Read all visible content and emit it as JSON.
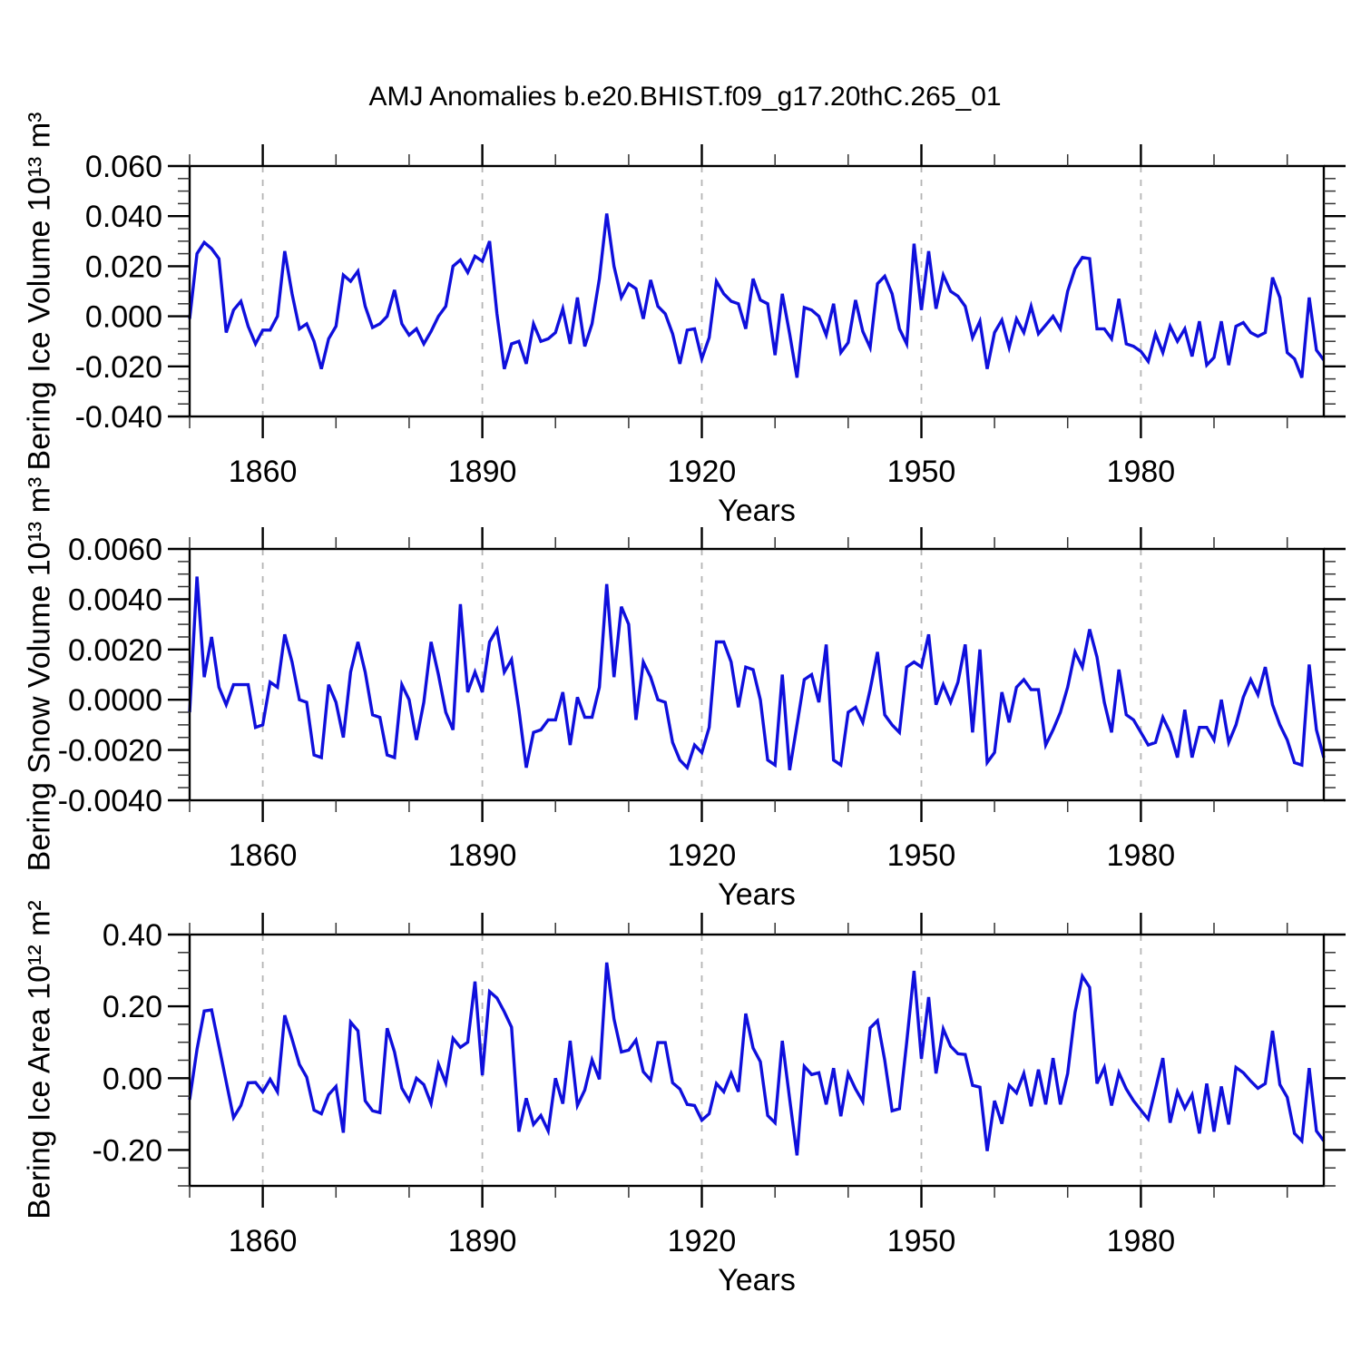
{
  "figure": {
    "title": "AMJ Anomalies b.e20.BHIST.f09_g17.20thC.265_01",
    "background_color": "#ffffff",
    "line_color": "#0f0fdc",
    "gridline_color": "#b4b4b4",
    "axis_color": "#000000",
    "minor_tick_color": "#333333"
  },
  "chart_data": [
    {
      "id": "ice_volume",
      "type": "line",
      "title": "AMJ Anomalies b.e20.BHIST.f09_g17.20thC.265_01",
      "xlabel": "Years",
      "ylabel": "Bering Ice Volume 10¹³ m³",
      "legend": "none",
      "grid": "vertical-dashed-at-major-xticks",
      "xlim": [
        1850,
        2005
      ],
      "ylim": [
        -0.04,
        0.06
      ],
      "x_start": 1850,
      "x_step": 1,
      "xticks": {
        "values": [
          1860,
          1890,
          1920,
          1950,
          1980
        ],
        "labels": [
          "1860",
          "1890",
          "1920",
          "1950",
          "1980"
        ],
        "minor_step": 10
      },
      "yticks": {
        "values": [
          -0.04,
          -0.02,
          0.0,
          0.02,
          0.04,
          0.06
        ],
        "labels": [
          "-0.040",
          "-0.020",
          "0.000",
          "0.020",
          "0.040",
          "0.060"
        ],
        "minor_step": 0.005
      },
      "values": [
        -0.001,
        0.025,
        0.0295,
        0.027,
        0.023,
        -0.0065,
        0.0025,
        0.006,
        -0.004,
        -0.011,
        -0.0055,
        -0.0055,
        0.0,
        0.026,
        0.009,
        -0.005,
        -0.003,
        -0.01,
        -0.021,
        -0.009,
        -0.004,
        0.0165,
        0.014,
        0.018,
        0.004,
        -0.0045,
        -0.003,
        0.0,
        0.0105,
        -0.003,
        -0.0075,
        -0.005,
        -0.011,
        -0.006,
        0.0,
        0.004,
        0.02,
        0.0225,
        0.0175,
        0.024,
        0.022,
        0.03,
        0.001,
        -0.021,
        -0.011,
        -0.01,
        -0.019,
        -0.003,
        -0.01,
        -0.009,
        -0.0065,
        0.003,
        -0.011,
        0.0075,
        -0.012,
        -0.003,
        0.015,
        0.041,
        0.02,
        0.0075,
        0.013,
        0.011,
        -0.001,
        0.0145,
        0.004,
        0.001,
        -0.007,
        -0.019,
        -0.0055,
        -0.005,
        -0.017,
        -0.0085,
        0.014,
        0.009,
        0.006,
        0.005,
        -0.005,
        0.015,
        0.0065,
        0.005,
        -0.0155,
        0.009,
        -0.007,
        -0.0245,
        0.0035,
        0.0025,
        0.0,
        -0.0075,
        0.005,
        -0.0145,
        -0.0105,
        0.0065,
        -0.006,
        -0.0125,
        0.013,
        0.016,
        0.009,
        -0.005,
        -0.011,
        0.029,
        0.0025,
        0.026,
        0.003,
        0.0165,
        0.01,
        0.008,
        0.004,
        -0.0085,
        -0.002,
        -0.021,
        -0.0065,
        -0.0015,
        -0.0125,
        -0.001,
        -0.0065,
        0.004,
        -0.007,
        -0.0035,
        0.0,
        -0.005,
        0.01,
        0.019,
        0.0235,
        0.023,
        -0.005,
        -0.005,
        -0.009,
        0.007,
        -0.011,
        -0.012,
        -0.014,
        -0.018,
        -0.007,
        -0.0145,
        -0.004,
        -0.01,
        -0.005,
        -0.016,
        -0.002,
        -0.0195,
        -0.0165,
        -0.002,
        -0.0195,
        -0.004,
        -0.0025,
        -0.0065,
        -0.008,
        -0.0065,
        0.0155,
        0.0075,
        -0.0145,
        -0.017,
        -0.0245,
        0.0075,
        -0.0135,
        -0.0175
      ]
    },
    {
      "id": "snow_volume",
      "type": "line",
      "title": "",
      "xlabel": "Years",
      "ylabel": "Bering Snow Volume 10¹³ m³",
      "legend": "none",
      "grid": "vertical-dashed-at-major-xticks",
      "xlim": [
        1850,
        2005
      ],
      "ylim": [
        -0.004,
        0.006
      ],
      "x_start": 1850,
      "x_step": 1,
      "xticks": {
        "values": [
          1860,
          1890,
          1920,
          1950,
          1980
        ],
        "labels": [
          "1860",
          "1890",
          "1920",
          "1950",
          "1980"
        ],
        "minor_step": 10
      },
      "yticks": {
        "values": [
          -0.004,
          -0.002,
          0.0,
          0.002,
          0.004,
          0.006
        ],
        "labels": [
          "-0.0040",
          "-0.0020",
          "0.0000",
          "0.0020",
          "0.0040",
          "0.0060"
        ],
        "minor_step": 0.0005
      },
      "values": [
        -0.0005,
        0.0049,
        0.0009,
        0.0025,
        0.0005,
        -0.0002,
        0.0006,
        0.0006,
        0.0006,
        -0.0011,
        -0.001,
        0.0007,
        0.0005,
        0.0026,
        0.0015,
        0.0,
        -0.0001,
        -0.0022,
        -0.0023,
        0.0006,
        -0.0001,
        -0.0015,
        0.0011,
        0.0023,
        0.0011,
        -0.0006,
        -0.0007,
        -0.0022,
        -0.0023,
        0.0006,
        0.0,
        -0.0016,
        -0.0001,
        0.0023,
        0.001,
        -0.0005,
        -0.0012,
        0.0038,
        0.0003,
        0.0011,
        0.0003,
        0.0023,
        0.0028,
        0.0011,
        0.0016,
        -0.0004,
        -0.0027,
        -0.0013,
        -0.0012,
        -0.0008,
        -0.0008,
        0.0003,
        -0.0018,
        0.0001,
        -0.0007,
        -0.0007,
        0.0005,
        0.0046,
        0.0009,
        0.0037,
        0.003,
        -0.0008,
        0.0015,
        0.0009,
        0.0,
        -0.0001,
        -0.0017,
        -0.0024,
        -0.0027,
        -0.0018,
        -0.0021,
        -0.0011,
        0.0023,
        0.0023,
        0.0015,
        -0.0003,
        0.0013,
        0.0012,
        0.0,
        -0.0024,
        -0.0026,
        0.001,
        -0.0028,
        -0.001,
        0.0008,
        0.001,
        -0.0001,
        0.0022,
        -0.0024,
        -0.0026,
        -0.0005,
        -0.0003,
        -0.0009,
        0.0004,
        0.0019,
        -0.0006,
        -0.001,
        -0.0013,
        0.0013,
        0.0015,
        0.0013,
        0.0026,
        -0.0002,
        0.0006,
        -0.0001,
        0.0007,
        0.0022,
        -0.0013,
        0.002,
        -0.0025,
        -0.0021,
        0.0003,
        -0.0009,
        0.0005,
        0.0008,
        0.0004,
        0.0004,
        -0.0018,
        -0.0012,
        -0.0005,
        0.0005,
        0.0019,
        0.0013,
        0.0028,
        0.0017,
        -0.0001,
        -0.0013,
        0.0012,
        -0.0006,
        -0.0008,
        -0.0013,
        -0.0018,
        -0.0017,
        -0.0007,
        -0.0013,
        -0.0023,
        -0.0004,
        -0.0023,
        -0.0011,
        -0.0011,
        -0.0016,
        0.0,
        -0.0017,
        -0.001,
        0.0001,
        0.0008,
        0.0002,
        0.0013,
        -0.0002,
        -0.001,
        -0.0016,
        -0.0025,
        -0.0026,
        0.0014,
        -0.0012,
        -0.0023
      ]
    },
    {
      "id": "ice_area",
      "type": "line",
      "title": "",
      "xlabel": "Years",
      "ylabel": "Bering Ice Area 10¹² m²",
      "legend": "none",
      "grid": "vertical-dashed-at-major-xticks",
      "xlim": [
        1850,
        2005
      ],
      "ylim": [
        -0.3,
        0.4
      ],
      "x_start": 1850,
      "x_step": 1,
      "xticks": {
        "values": [
          1860,
          1890,
          1920,
          1950,
          1980
        ],
        "labels": [
          "1860",
          "1890",
          "1920",
          "1950",
          "1980"
        ],
        "minor_step": 10
      },
      "yticks": {
        "values": [
          -0.2,
          0.0,
          0.2,
          0.4
        ],
        "labels": [
          "-0.20",
          "0.00",
          "0.20",
          "0.40"
        ],
        "minor_step": 0.05
      },
      "values": [
        -0.06,
        0.08,
        0.187,
        0.19,
        0.09,
        -0.01,
        -0.11,
        -0.076,
        -0.013,
        -0.012,
        -0.038,
        -0.003,
        -0.038,
        0.175,
        0.109,
        0.038,
        0.003,
        -0.089,
        -0.099,
        -0.046,
        -0.023,
        -0.152,
        0.156,
        0.132,
        -0.063,
        -0.091,
        -0.096,
        0.139,
        0.073,
        -0.028,
        -0.062,
        0.0,
        -0.018,
        -0.071,
        0.039,
        -0.013,
        0.111,
        0.086,
        0.1,
        0.269,
        0.008,
        0.241,
        0.223,
        0.185,
        0.142,
        -0.149,
        -0.056,
        -0.129,
        -0.104,
        -0.147,
        0.0,
        -0.071,
        0.104,
        -0.076,
        -0.033,
        0.051,
        -0.003,
        0.322,
        0.165,
        0.073,
        0.078,
        0.106,
        0.018,
        -0.005,
        0.099,
        0.099,
        -0.013,
        -0.03,
        -0.073,
        -0.076,
        -0.117,
        -0.099,
        -0.015,
        -0.038,
        0.013,
        -0.038,
        0.18,
        0.084,
        0.046,
        -0.104,
        -0.124,
        0.104,
        -0.058,
        -0.215,
        0.033,
        0.01,
        0.015,
        -0.073,
        0.028,
        -0.106,
        0.013,
        -0.03,
        -0.065,
        0.14,
        0.16,
        0.05,
        -0.091,
        -0.085,
        0.1,
        0.299,
        0.054,
        0.226,
        0.013,
        0.137,
        0.089,
        0.068,
        0.066,
        -0.02,
        -0.025,
        -0.203,
        -0.063,
        -0.127,
        -0.02,
        -0.041,
        0.013,
        -0.078,
        0.024,
        -0.073,
        0.056,
        -0.073,
        0.013,
        0.183,
        0.284,
        0.253,
        -0.015,
        0.03,
        -0.076,
        0.015,
        -0.03,
        -0.063,
        -0.089,
        -0.114,
        -0.03,
        0.056,
        -0.124,
        -0.038,
        -0.084,
        -0.046,
        -0.154,
        -0.015,
        -0.149,
        -0.023,
        -0.129,
        0.03,
        0.015,
        -0.008,
        -0.028,
        -0.015,
        0.132,
        -0.018,
        -0.053,
        -0.154,
        -0.175,
        0.028,
        -0.147,
        -0.175
      ]
    }
  ]
}
